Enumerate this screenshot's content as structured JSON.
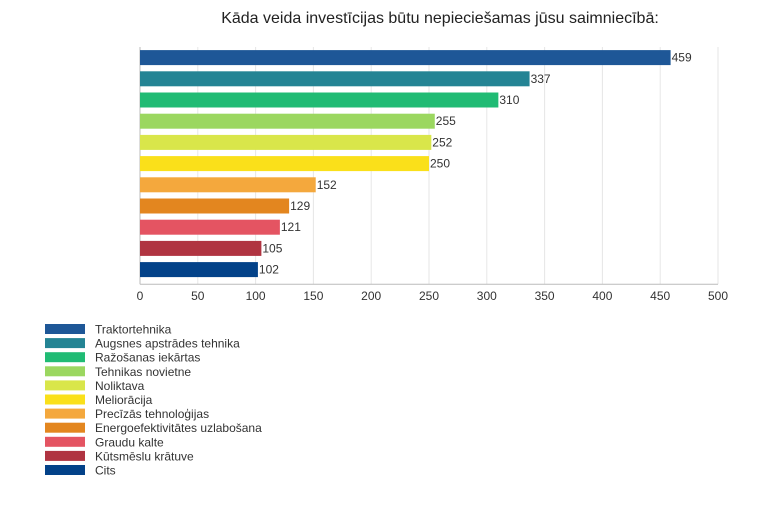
{
  "chart_data": {
    "type": "bar",
    "orientation": "horizontal",
    "title": "Kāda veida investīcijas būtu nepieciešamas jūsu saimniecībā:",
    "categories": [
      "Traktortehnika",
      "Augsnes apstrādes tehnika",
      "Ražošanas iekārtas",
      "Tehnikas novietne",
      "Noliktava",
      "Meliorācija",
      "Precīzās tehnoloģijas",
      "Energoefektivitātes uzlabošana",
      "Graudu kalte",
      "Kūtsmēslu krātuve",
      "Cits"
    ],
    "values": [
      459,
      337,
      310,
      255,
      252,
      250,
      152,
      129,
      121,
      105,
      102
    ],
    "colors": [
      "#1e5797",
      "#248494",
      "#20bb74",
      "#9bd760",
      "#d9e64a",
      "#fae01a",
      "#f4a83d",
      "#e3861f",
      "#e45462",
      "#b03441",
      "#034289"
    ],
    "xlim": [
      0,
      500
    ],
    "xticks": [
      0,
      50,
      100,
      150,
      200,
      250,
      300,
      350,
      400,
      450,
      500
    ],
    "grid": true,
    "legend_position": "bottom-left"
  }
}
